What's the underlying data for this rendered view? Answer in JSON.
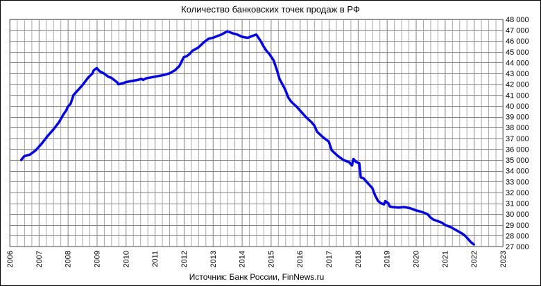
{
  "chart_data": {
    "type": "line",
    "title": "Количество  банковских  точек  продаж  в РФ",
    "source": "Источник: Банк России, FinNews.ru",
    "xlabel": "",
    "ylabel": "",
    "xlim": [
      2006,
      2023
    ],
    "ylim": [
      27000,
      48000
    ],
    "x_ticks": [
      "2006",
      "2007",
      "2008",
      "2009",
      "2010",
      "2011",
      "2012",
      "2013",
      "2014",
      "2015",
      "2016",
      "2017",
      "2018",
      "2019",
      "2020",
      "2021",
      "2022",
      "2023"
    ],
    "y_ticks": [
      "27 000",
      "28 000",
      "29 000",
      "30 000",
      "31 000",
      "32 000",
      "33 000",
      "34 000",
      "35 000",
      "36 000",
      "37 000",
      "38 000",
      "39 000",
      "40 000",
      "41 000",
      "42 000",
      "43 000",
      "44 000",
      "45 000",
      "46 000",
      "47 000",
      "48 000"
    ],
    "grid": true,
    "line_color": "#0000ff",
    "series": [
      {
        "x": [
          2006.4,
          2006.5,
          2006.7,
          2006.9,
          2007.1,
          2007.3,
          2007.5,
          2007.7,
          2007.85,
          2007.95,
          2008.0,
          2008.1,
          2008.2,
          2008.3,
          2008.5,
          2008.7,
          2008.85,
          2008.9,
          2009.0,
          2009.1,
          2009.25,
          2009.4,
          2009.5,
          2009.6,
          2009.7,
          2009.75,
          2009.9,
          2010.0,
          2010.2,
          2010.4,
          2010.55,
          2010.6,
          2010.7,
          2010.8,
          2011.0,
          2011.2,
          2011.3,
          2011.5,
          2011.7,
          2011.85,
          2012.0,
          2012.1,
          2012.2,
          2012.3,
          2012.5,
          2012.7,
          2012.85,
          2013.0,
          2013.1,
          2013.3,
          2013.5,
          2013.6,
          2013.7,
          2013.85,
          2014.0,
          2014.2,
          2014.4,
          2014.5,
          2014.55,
          2014.65,
          2014.75,
          2014.85,
          2014.95,
          2015.1,
          2015.2,
          2015.3,
          2015.5,
          2015.6,
          2015.7,
          2015.9,
          2016.0,
          2016.2,
          2016.4,
          2016.5,
          2016.6,
          2016.8,
          2017.0,
          2017.1,
          2017.3,
          2017.5,
          2017.7,
          2017.8,
          2017.85,
          2017.95,
          2018.05,
          2018.1,
          2018.2,
          2018.3,
          2018.5,
          2018.6,
          2018.7,
          2018.8,
          2018.9,
          2018.95,
          2019.05,
          2019.1,
          2019.2,
          2019.4,
          2019.6,
          2019.8,
          2020.0,
          2020.2,
          2020.4,
          2020.5,
          2020.6,
          2020.7,
          2020.9,
          2021.0,
          2021.2,
          2021.4,
          2021.6,
          2021.7,
          2021.8,
          2021.9,
          2022.0
        ],
        "values": [
          35000,
          35350,
          35500,
          35900,
          36500,
          37200,
          37800,
          38500,
          39200,
          39600,
          39900,
          40200,
          41000,
          41300,
          41900,
          42600,
          43000,
          43300,
          43500,
          43200,
          43000,
          42700,
          42600,
          42400,
          42200,
          42000,
          42100,
          42200,
          42300,
          42400,
          42500,
          42400,
          42550,
          42600,
          42700,
          42800,
          42850,
          43000,
          43300,
          43700,
          44500,
          44600,
          44800,
          45100,
          45400,
          45900,
          46200,
          46300,
          46400,
          46600,
          46900,
          46800,
          46700,
          46600,
          46400,
          46300,
          46500,
          46600,
          46400,
          46000,
          45500,
          45100,
          44800,
          44200,
          43400,
          42500,
          41500,
          40800,
          40400,
          39900,
          39600,
          39000,
          38500,
          38200,
          37600,
          37100,
          36700,
          35900,
          35400,
          35000,
          34800,
          34500,
          35100,
          34800,
          34700,
          33400,
          33300,
          33000,
          32400,
          31700,
          31200,
          31000,
          30900,
          31200,
          31000,
          30700,
          30650,
          30600,
          30650,
          30550,
          30350,
          30200,
          30000,
          29700,
          29500,
          29400,
          29200,
          29000,
          28800,
          28500,
          28200,
          28000,
          27700,
          27400,
          27200
        ]
      }
    ]
  }
}
